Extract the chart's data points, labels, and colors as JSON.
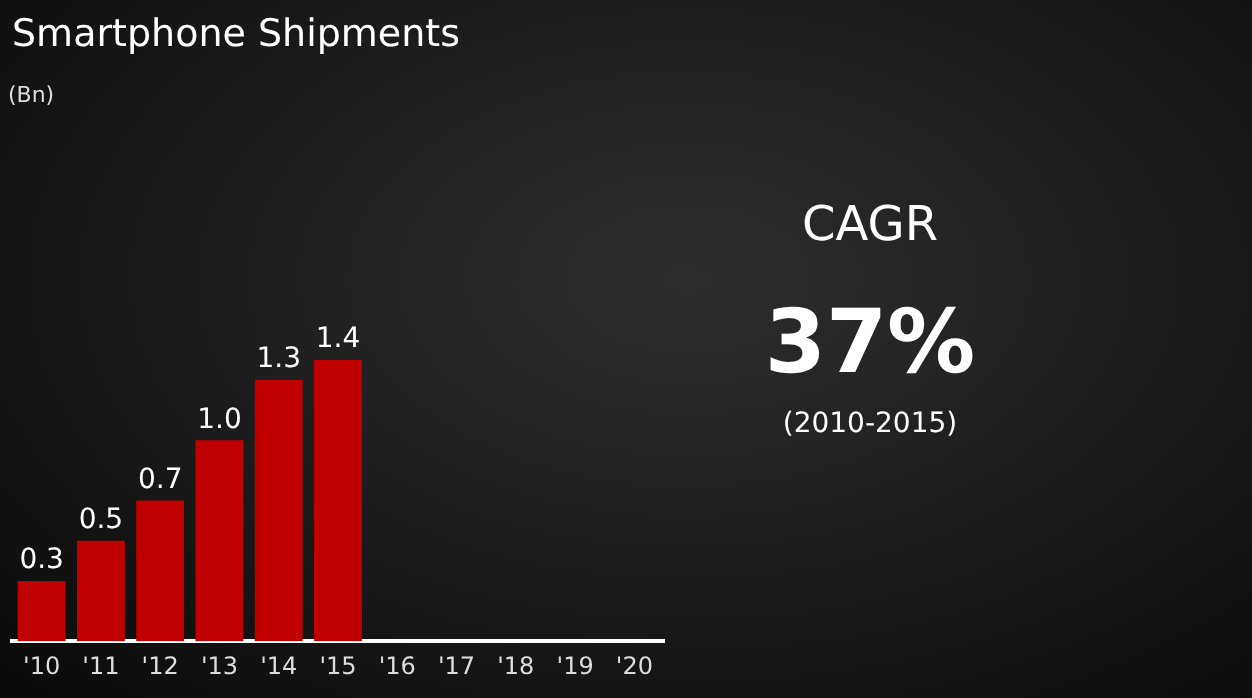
{
  "chart_data": {
    "type": "bar",
    "title": "Smartphone Shipments",
    "subtitle": "(Bn)",
    "categories": [
      "'10",
      "'11",
      "'12",
      "'13",
      "'14",
      "'15",
      "'16",
      "'17",
      "'18",
      "'19",
      "'20"
    ],
    "values": [
      0.3,
      0.5,
      0.7,
      1.0,
      1.3,
      1.4,
      null,
      null,
      null,
      null,
      null
    ],
    "value_labels": [
      "0.3",
      "0.5",
      "0.7",
      "1.0",
      "1.3",
      "1.4",
      null,
      null,
      null,
      null,
      null
    ],
    "color": "#c00000",
    "tick_labels": "x",
    "grid": false,
    "legend": false,
    "annotations": [
      "CAGR",
      "37%",
      "(2010-2015)"
    ]
  }
}
